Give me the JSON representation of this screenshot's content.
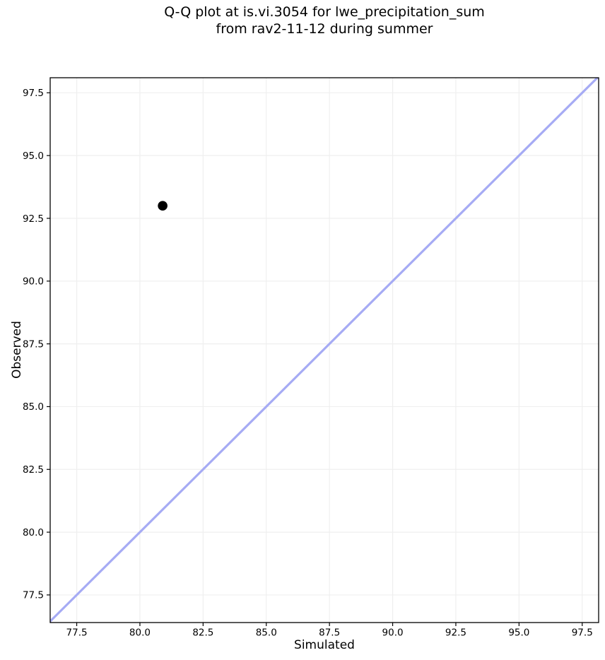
{
  "title": {
    "line1": "Q-Q plot at is.vi.3054 for lwe_precipitation_sum",
    "line2": "from rav2-11-12 during summer"
  },
  "chart_data": {
    "type": "scatter",
    "title": "Q-Q plot at is.vi.3054 for lwe_precipitation_sum\nfrom rav2-11-12 during summer",
    "xlabel": "Simulated",
    "ylabel": "Observed",
    "xlim": [
      76.45,
      98.15
    ],
    "ylim": [
      76.4,
      98.1
    ],
    "xticks": [
      77.5,
      80.0,
      82.5,
      85.0,
      87.5,
      90.0,
      92.5,
      95.0,
      97.5
    ],
    "yticks": [
      77.5,
      80.0,
      82.5,
      85.0,
      87.5,
      90.0,
      92.5,
      95.0,
      97.5
    ],
    "tick_decimals": 1,
    "grid": true,
    "grid_color": "#efefef",
    "spine_color": "#000000",
    "tick_color": "#000000",
    "legend": null,
    "series": [
      {
        "name": "identity-line",
        "type": "line",
        "color": "#a6abf4",
        "line_width": 3.2,
        "points": [
          [
            76.4,
            76.4
          ],
          [
            98.2,
            98.2
          ]
        ]
      },
      {
        "name": "quantile-points",
        "type": "scatter",
        "color": "#000000",
        "marker_radius": 6.8,
        "points": [
          [
            80.9,
            93.0
          ]
        ]
      }
    ]
  }
}
